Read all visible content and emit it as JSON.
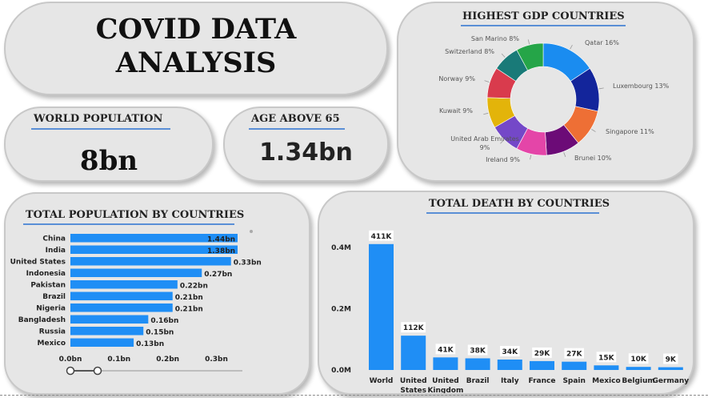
{
  "title": {
    "line1": "COVID DATA",
    "line2": "ANALYSIS"
  },
  "kpis": {
    "world_population": {
      "label": "WORLD POPULATION",
      "value": "8bn"
    },
    "age_above_65": {
      "label": "AGE ABOVE 65",
      "value": "1.34bn"
    }
  },
  "colors": {
    "bar": "#1f8ef5",
    "underline": "#5a8fd6",
    "card_bg": "#e6e6e6"
  },
  "gdp_chart": {
    "title": "HIGHEST GDP COUNTRIES",
    "chart_data": {
      "type": "pie",
      "variant": "donut",
      "slices": [
        {
          "label": "Qatar 16%",
          "value": 16,
          "color": "#1a8cf0"
        },
        {
          "label": "Luxembourg 13%",
          "value": 13,
          "color": "#13259b"
        },
        {
          "label": "Singapore 11%",
          "value": 11,
          "color": "#ee6f35"
        },
        {
          "label": "Brunei 10%",
          "value": 10,
          "color": "#6c0b77"
        },
        {
          "label": "Ireland 9%",
          "value": 9,
          "color": "#e445a8"
        },
        {
          "label": "United Arab Emirates 9%",
          "value": 9,
          "color": "#7448c8"
        },
        {
          "label": "Kuwait 9%",
          "value": 9,
          "color": "#e3b40a"
        },
        {
          "label": "Norway 9%",
          "value": 9,
          "color": "#d93b4d"
        },
        {
          "label": "Switzerland 8%",
          "value": 8,
          "color": "#197a78"
        },
        {
          "label": "San Marino 8%",
          "value": 8,
          "color": "#25a548"
        }
      ]
    }
  },
  "population_chart": {
    "title": "TOTAL POPULATION BY COUNTRIES",
    "chart_data": {
      "type": "bar",
      "orientation": "horizontal",
      "categories": [
        "China",
        "India",
        "United States",
        "Indonesia",
        "Pakistan",
        "Brazil",
        "Nigeria",
        "Bangladesh",
        "Russia",
        "Mexico"
      ],
      "values": [
        1.44,
        1.38,
        0.33,
        0.27,
        0.22,
        0.21,
        0.21,
        0.16,
        0.15,
        0.13
      ],
      "data_labels": [
        "1.44bn",
        "1.38bn",
        "0.33bn",
        "0.27bn",
        "0.22bn",
        "0.21bn",
        "0.21bn",
        "0.16bn",
        "0.15bn",
        "0.13bn"
      ],
      "x_ticks": [
        "0.0bn",
        "0.1bn",
        "0.2bn",
        "0.3bn"
      ],
      "x_tick_values": [
        0,
        0.1,
        0.2,
        0.3
      ],
      "xlim": [
        0,
        0.36
      ],
      "axis_break": true
    }
  },
  "death_chart": {
    "title": "TOTAL DEATH BY COUNTRIES",
    "chart_data": {
      "type": "bar",
      "orientation": "vertical",
      "categories": [
        "World",
        "United States",
        "United Kingdom",
        "Brazil",
        "Italy",
        "France",
        "Spain",
        "Mexico",
        "Belgium",
        "Germany"
      ],
      "category_lines": [
        [
          "World"
        ],
        [
          "United",
          "States"
        ],
        [
          "United",
          "Kingdom"
        ],
        [
          "Brazil"
        ],
        [
          "Italy"
        ],
        [
          "France"
        ],
        [
          "Spain"
        ],
        [
          "Mexico"
        ],
        [
          "Belgium"
        ],
        [
          "Germany"
        ]
      ],
      "values": [
        411000,
        112000,
        41000,
        38000,
        34000,
        29000,
        27000,
        15000,
        10000,
        9000
      ],
      "data_labels": [
        "411K",
        "112K",
        "41K",
        "38K",
        "34K",
        "29K",
        "27K",
        "15K",
        "10K",
        "9K"
      ],
      "y_ticks": [
        "0.0M",
        "0.2M",
        "0.4M"
      ],
      "y_tick_values": [
        0,
        200000,
        400000
      ],
      "ylim": [
        0,
        400000
      ]
    }
  }
}
